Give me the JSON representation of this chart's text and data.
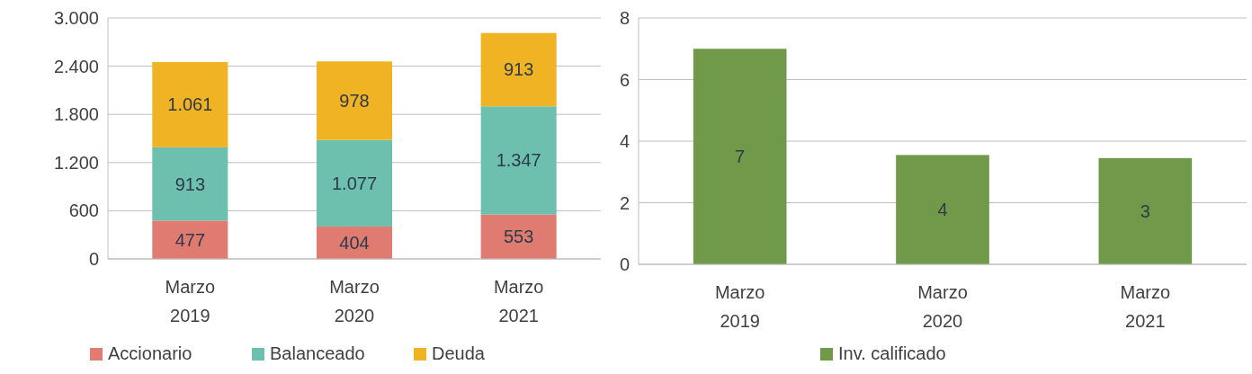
{
  "chart_data": [
    {
      "type": "bar",
      "stacked": true,
      "categories": [
        "Marzo 2019",
        "Marzo 2020",
        "Marzo 2021"
      ],
      "series": [
        {
          "name": "Accionario",
          "color": "#e07b72",
          "values": [
            477,
            404,
            553
          ],
          "value_labels": [
            "477",
            "404",
            "553"
          ]
        },
        {
          "name": "Balanceado",
          "color": "#6dbfae",
          "values": [
            913,
            1077,
            1347
          ],
          "value_labels": [
            "913",
            "1.077",
            "1.347"
          ]
        },
        {
          "name": "Deuda",
          "color": "#f0b323",
          "values": [
            1061,
            978,
            913
          ],
          "value_labels": [
            "1.061",
            "978",
            "913"
          ]
        }
      ],
      "ylim": [
        0,
        3000
      ],
      "yticks": [
        0,
        {
          "value": 600,
          "label": "600"
        },
        {
          "value": 1200,
          "label": "1.200"
        },
        {
          "value": 1800,
          "label": "1.800"
        },
        {
          "value": 2400,
          "label": "2.400"
        },
        {
          "value": 3000,
          "label": "3.000"
        }
      ],
      "grid": "y",
      "legend": "bottom"
    },
    {
      "type": "bar",
      "categories": [
        "Marzo 2019",
        "Marzo 2020",
        "Marzo 2021"
      ],
      "series": [
        {
          "name": "Inv. calificado",
          "color": "#70994a",
          "values": [
            7,
            3.55,
            3.45
          ],
          "value_labels": [
            "7",
            "4",
            "3"
          ]
        }
      ],
      "ylim": [
        0,
        8
      ],
      "yticks": [
        0,
        2,
        4,
        6,
        8
      ],
      "grid": "y",
      "legend": "bottom"
    }
  ]
}
